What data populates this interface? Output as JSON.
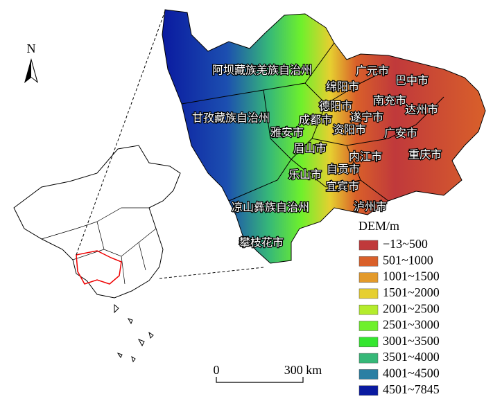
{
  "north": "N",
  "regions": [
    "阿坝藏族羌族自治州",
    "广元市",
    "巴中市",
    "绵阳市",
    "南充市",
    "德阳市",
    "遂宁市",
    "达州市",
    "甘孜藏族自治州",
    "成都市",
    "雅安市",
    "资阳市",
    "广安市",
    "眉山市",
    "内江市",
    "重庆市",
    "乐山市",
    "自贡市",
    "宜宾市",
    "凉山彝族自治州",
    "泸州市",
    "攀枝花市"
  ],
  "legend": {
    "title": "DEM/m",
    "items": [
      {
        "label": "−13~500",
        "color": "#c0393b"
      },
      {
        "label": "501~1000",
        "color": "#d9602a"
      },
      {
        "label": "1001~1500",
        "color": "#e39a2b"
      },
      {
        "label": "1501~2000",
        "color": "#e6cf30"
      },
      {
        "label": "2001~2500",
        "color": "#b4ec2c"
      },
      {
        "label": "2501~3000",
        "color": "#6ef02c"
      },
      {
        "label": "3001~3500",
        "color": "#34e62f"
      },
      {
        "label": "3501~4000",
        "color": "#36b878"
      },
      {
        "label": "4001~4500",
        "color": "#2b7fa3"
      },
      {
        "label": "4501~7845",
        "color": "#0a1aa0"
      }
    ]
  },
  "scale_bar": {
    "start": "0",
    "end": "300 km"
  }
}
